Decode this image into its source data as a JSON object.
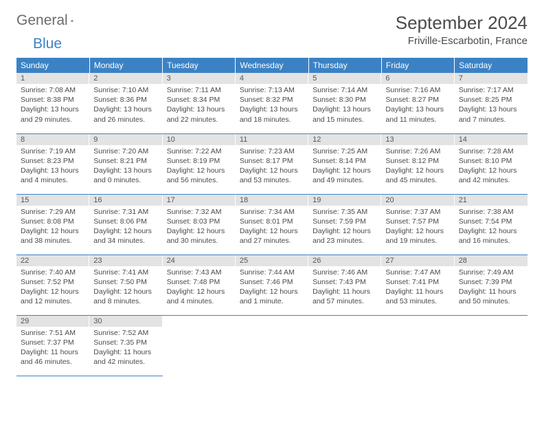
{
  "logo": {
    "part1": "General",
    "part2": "Blue"
  },
  "title": "September 2024",
  "location": "Friville-Escarbotin, France",
  "colors": {
    "header_bg": "#3b82c4",
    "header_text": "#ffffff",
    "daynum_bg": "#e3e3e3",
    "daynum_text": "#555555",
    "body_text": "#4a4a4a",
    "rule": "#3b82c4",
    "logo_gray": "#6b6b6b",
    "logo_blue": "#3b82c4"
  },
  "dow": [
    "Sunday",
    "Monday",
    "Tuesday",
    "Wednesday",
    "Thursday",
    "Friday",
    "Saturday"
  ],
  "days": [
    {
      "n": 1,
      "sunrise": "7:08 AM",
      "sunset": "8:38 PM",
      "daylight": "13 hours and 29 minutes."
    },
    {
      "n": 2,
      "sunrise": "7:10 AM",
      "sunset": "8:36 PM",
      "daylight": "13 hours and 26 minutes."
    },
    {
      "n": 3,
      "sunrise": "7:11 AM",
      "sunset": "8:34 PM",
      "daylight": "13 hours and 22 minutes."
    },
    {
      "n": 4,
      "sunrise": "7:13 AM",
      "sunset": "8:32 PM",
      "daylight": "13 hours and 18 minutes."
    },
    {
      "n": 5,
      "sunrise": "7:14 AM",
      "sunset": "8:30 PM",
      "daylight": "13 hours and 15 minutes."
    },
    {
      "n": 6,
      "sunrise": "7:16 AM",
      "sunset": "8:27 PM",
      "daylight": "13 hours and 11 minutes."
    },
    {
      "n": 7,
      "sunrise": "7:17 AM",
      "sunset": "8:25 PM",
      "daylight": "13 hours and 7 minutes."
    },
    {
      "n": 8,
      "sunrise": "7:19 AM",
      "sunset": "8:23 PM",
      "daylight": "13 hours and 4 minutes."
    },
    {
      "n": 9,
      "sunrise": "7:20 AM",
      "sunset": "8:21 PM",
      "daylight": "13 hours and 0 minutes."
    },
    {
      "n": 10,
      "sunrise": "7:22 AM",
      "sunset": "8:19 PM",
      "daylight": "12 hours and 56 minutes."
    },
    {
      "n": 11,
      "sunrise": "7:23 AM",
      "sunset": "8:17 PM",
      "daylight": "12 hours and 53 minutes."
    },
    {
      "n": 12,
      "sunrise": "7:25 AM",
      "sunset": "8:14 PM",
      "daylight": "12 hours and 49 minutes."
    },
    {
      "n": 13,
      "sunrise": "7:26 AM",
      "sunset": "8:12 PM",
      "daylight": "12 hours and 45 minutes."
    },
    {
      "n": 14,
      "sunrise": "7:28 AM",
      "sunset": "8:10 PM",
      "daylight": "12 hours and 42 minutes."
    },
    {
      "n": 15,
      "sunrise": "7:29 AM",
      "sunset": "8:08 PM",
      "daylight": "12 hours and 38 minutes."
    },
    {
      "n": 16,
      "sunrise": "7:31 AM",
      "sunset": "8:06 PM",
      "daylight": "12 hours and 34 minutes."
    },
    {
      "n": 17,
      "sunrise": "7:32 AM",
      "sunset": "8:03 PM",
      "daylight": "12 hours and 30 minutes."
    },
    {
      "n": 18,
      "sunrise": "7:34 AM",
      "sunset": "8:01 PM",
      "daylight": "12 hours and 27 minutes."
    },
    {
      "n": 19,
      "sunrise": "7:35 AM",
      "sunset": "7:59 PM",
      "daylight": "12 hours and 23 minutes."
    },
    {
      "n": 20,
      "sunrise": "7:37 AM",
      "sunset": "7:57 PM",
      "daylight": "12 hours and 19 minutes."
    },
    {
      "n": 21,
      "sunrise": "7:38 AM",
      "sunset": "7:54 PM",
      "daylight": "12 hours and 16 minutes."
    },
    {
      "n": 22,
      "sunrise": "7:40 AM",
      "sunset": "7:52 PM",
      "daylight": "12 hours and 12 minutes."
    },
    {
      "n": 23,
      "sunrise": "7:41 AM",
      "sunset": "7:50 PM",
      "daylight": "12 hours and 8 minutes."
    },
    {
      "n": 24,
      "sunrise": "7:43 AM",
      "sunset": "7:48 PM",
      "daylight": "12 hours and 4 minutes."
    },
    {
      "n": 25,
      "sunrise": "7:44 AM",
      "sunset": "7:46 PM",
      "daylight": "12 hours and 1 minute."
    },
    {
      "n": 26,
      "sunrise": "7:46 AM",
      "sunset": "7:43 PM",
      "daylight": "11 hours and 57 minutes."
    },
    {
      "n": 27,
      "sunrise": "7:47 AM",
      "sunset": "7:41 PM",
      "daylight": "11 hours and 53 minutes."
    },
    {
      "n": 28,
      "sunrise": "7:49 AM",
      "sunset": "7:39 PM",
      "daylight": "11 hours and 50 minutes."
    },
    {
      "n": 29,
      "sunrise": "7:51 AM",
      "sunset": "7:37 PM",
      "daylight": "11 hours and 46 minutes."
    },
    {
      "n": 30,
      "sunrise": "7:52 AM",
      "sunset": "7:35 PM",
      "daylight": "11 hours and 42 minutes."
    }
  ],
  "labels": {
    "sunrise": "Sunrise:",
    "sunset": "Sunset:",
    "daylight": "Daylight:"
  },
  "layout": {
    "start_offset": 0,
    "rows": 5,
    "cols": 7
  }
}
